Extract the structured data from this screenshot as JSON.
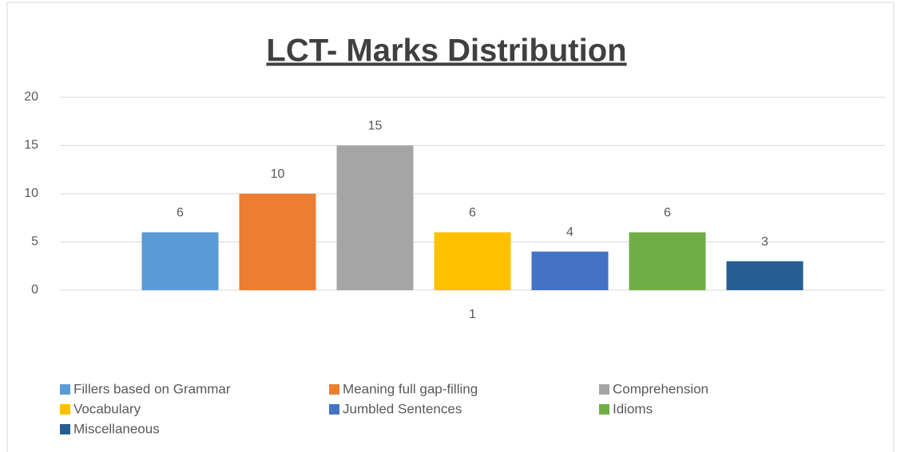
{
  "chart_data": {
    "type": "bar",
    "title": "LCT- Marks Distribution",
    "categories": [
      "1"
    ],
    "series": [
      {
        "name": "Fillers based on Grammar",
        "color": "#5b9bd5",
        "values": [
          6
        ]
      },
      {
        "name": "Meaning full gap-filling",
        "color": "#ed7d31",
        "values": [
          10
        ]
      },
      {
        "name": "Comprehension",
        "color": "#a5a5a5",
        "values": [
          15
        ]
      },
      {
        "name": "Vocabulary",
        "color": "#ffc000",
        "values": [
          6
        ]
      },
      {
        "name": "Jumbled Sentences",
        "color": "#4472c4",
        "values": [
          4
        ]
      },
      {
        "name": "Idioms",
        "color": "#70ad47",
        "values": [
          6
        ]
      },
      {
        "name": "Miscellaneous",
        "color": "#255e91",
        "values": [
          3
        ]
      }
    ],
    "ylim": [
      0,
      20
    ],
    "yticks": [
      0,
      5,
      10,
      15,
      20
    ],
    "grid": true,
    "legend": "bottom"
  }
}
